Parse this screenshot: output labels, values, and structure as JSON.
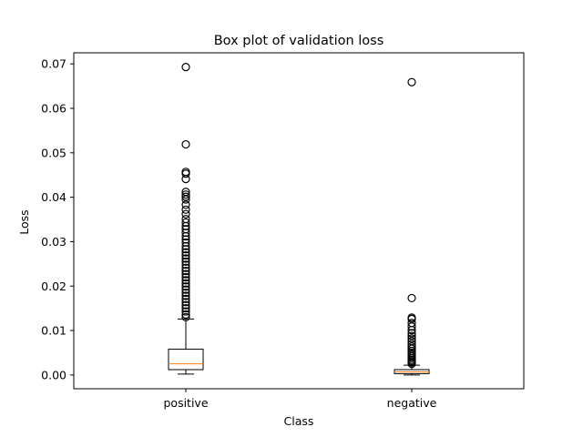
{
  "chart_data": {
    "type": "box",
    "title": "Box plot of validation loss",
    "xlabel": "Class",
    "ylabel": "Loss",
    "ylim": [
      -0.0031,
      0.0725
    ],
    "yticks": [
      0.0,
      0.01,
      0.02,
      0.03,
      0.04,
      0.05,
      0.06,
      0.07
    ],
    "ytick_labels": [
      "0.00",
      "0.01",
      "0.02",
      "0.03",
      "0.04",
      "0.05",
      "0.06",
      "0.07"
    ],
    "grid": false,
    "colors": {
      "box": "#000000",
      "median": "#ff7f0e",
      "flier": "#000000"
    },
    "categories": [
      "positive",
      "negative"
    ],
    "boxes": [
      {
        "whisker_low": 0.0002,
        "q1": 0.0012,
        "median": 0.0025,
        "q3": 0.0058,
        "whisker_high": 0.0126,
        "fliers": [
          0.0693,
          0.0519,
          0.0457,
          0.0453,
          0.0441,
          0.0412,
          0.0406,
          0.0401,
          0.0395,
          0.0383,
          0.0372,
          0.0362,
          0.0351,
          0.0343,
          0.0335,
          0.0328,
          0.032,
          0.0312,
          0.0305,
          0.0298,
          0.029,
          0.0283,
          0.0276,
          0.0269,
          0.0262,
          0.0255,
          0.0248,
          0.0241,
          0.0234,
          0.0227,
          0.022,
          0.0213,
          0.0206,
          0.0199,
          0.0192,
          0.0185,
          0.0178,
          0.0171,
          0.0164,
          0.0157,
          0.015,
          0.0143,
          0.0136,
          0.013
        ]
      },
      {
        "whisker_low": 0.0,
        "q1": 0.0003,
        "median": 0.0007,
        "q3": 0.0012,
        "whisker_high": 0.0022,
        "fliers": [
          0.0659,
          0.0173,
          0.0129,
          0.0126,
          0.0117,
          0.0109,
          0.0101,
          0.0094,
          0.0088,
          0.0082,
          0.0076,
          0.007,
          0.0064,
          0.0059,
          0.0054,
          0.005,
          0.0046,
          0.0042,
          0.0038,
          0.0034,
          0.0031,
          0.0028,
          0.0025
        ]
      }
    ]
  }
}
